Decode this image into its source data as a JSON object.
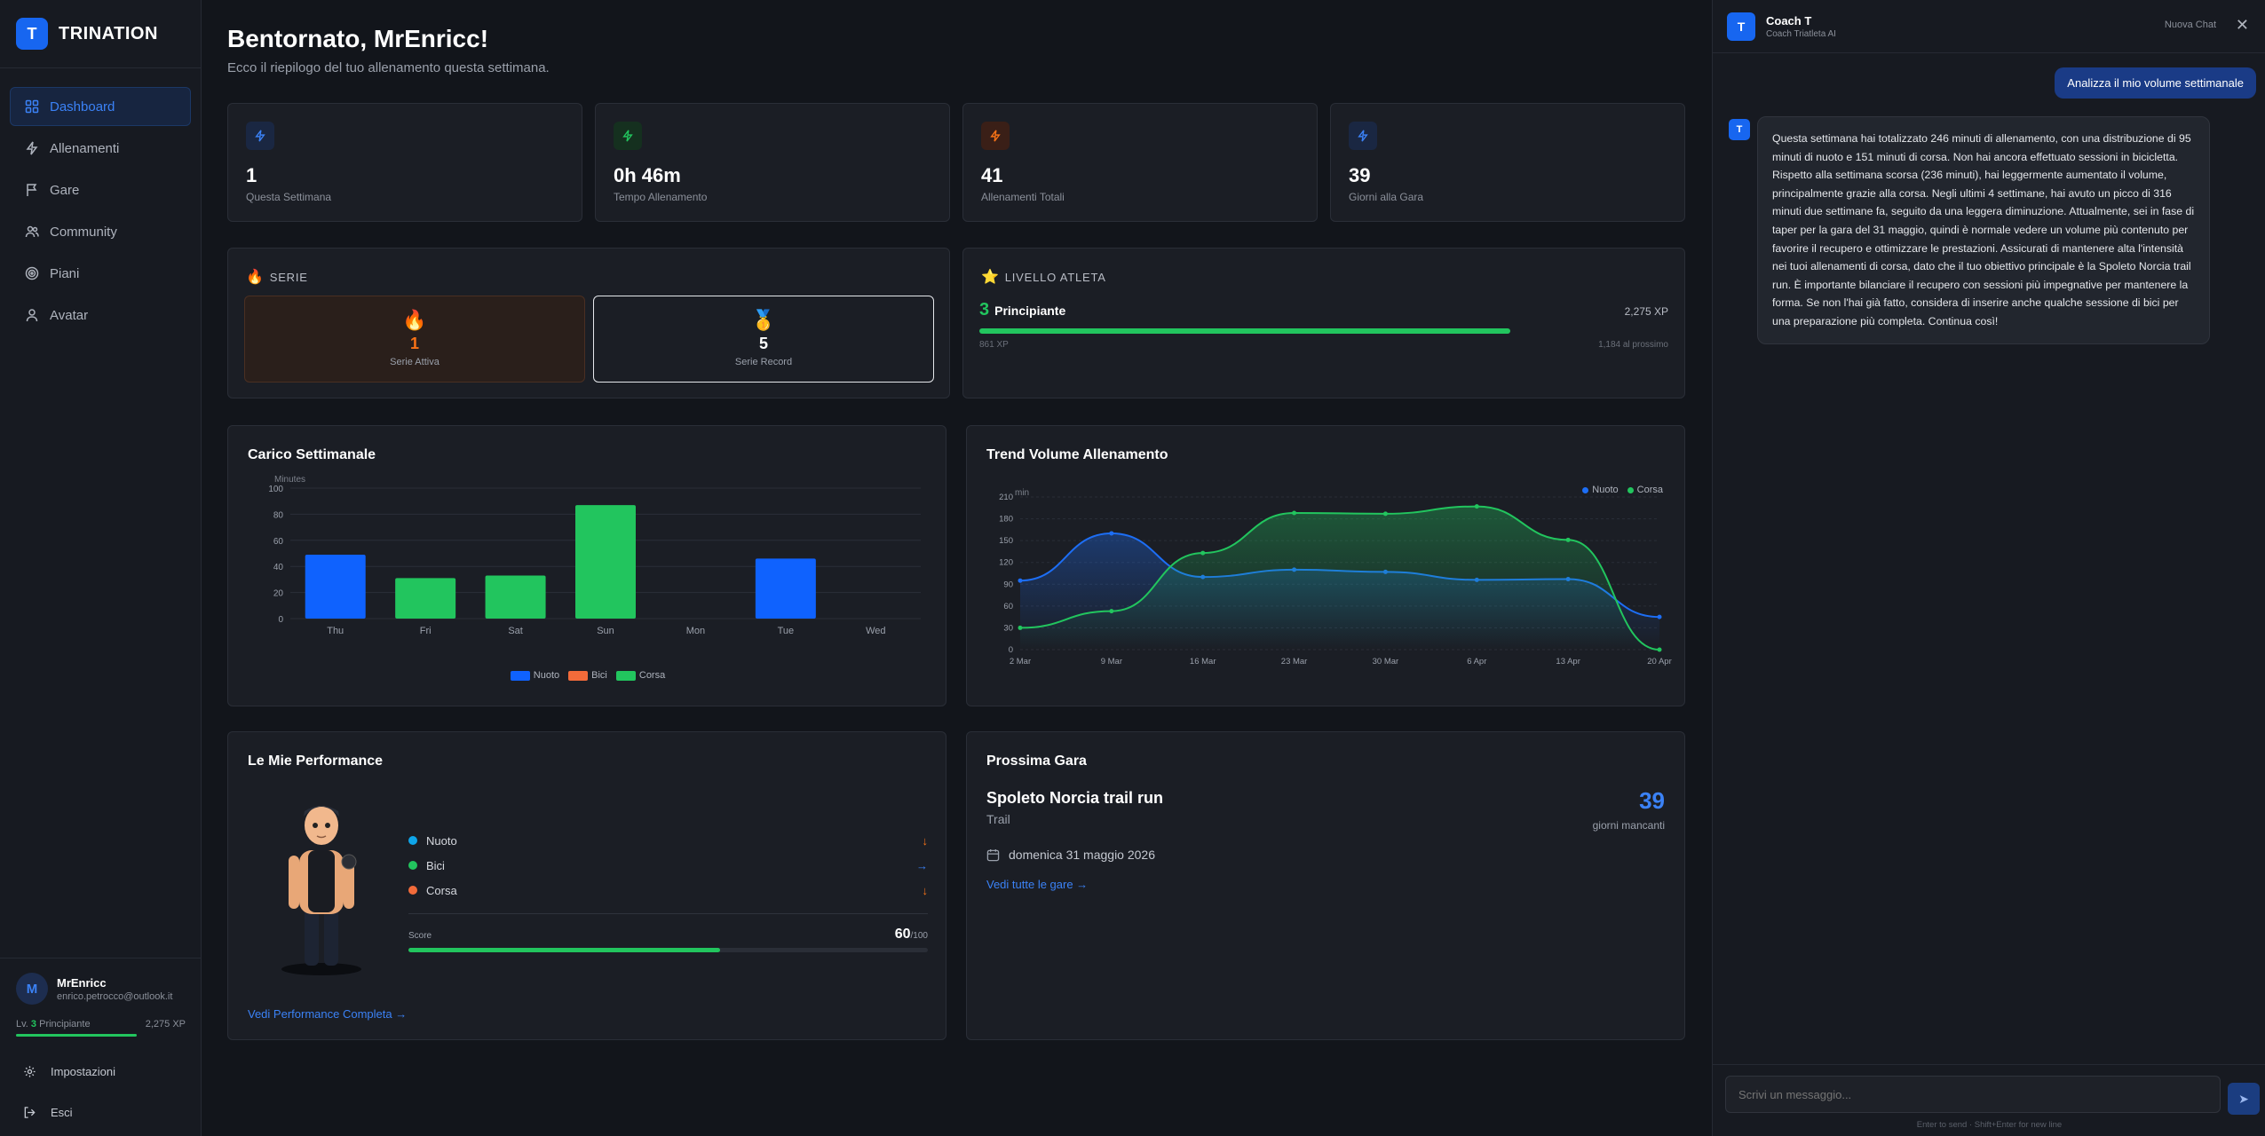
{
  "brand": {
    "logo": "T",
    "name": "TRINATION"
  },
  "nav": [
    {
      "label": "Dashboard",
      "icon": "grid-icon"
    },
    {
      "label": "Allenamenti",
      "icon": "bolt-icon"
    },
    {
      "label": "Gare",
      "icon": "flag-icon"
    },
    {
      "label": "Community",
      "icon": "users-icon"
    },
    {
      "label": "Piani",
      "icon": "target-icon"
    },
    {
      "label": "Avatar",
      "icon": "user-icon"
    }
  ],
  "user": {
    "initial": "M",
    "name": "MrEnricc",
    "email": "enrico.petrocco@outlook.it",
    "level_prefix": "Lv.",
    "level_num": "3",
    "level_name": "Principiante",
    "xp": "2,275 XP"
  },
  "side_links": {
    "settings": "Impostazioni",
    "logout": "Esci"
  },
  "header": {
    "title": "Bentornato, MrEnricc!",
    "subtitle": "Ecco il riepilogo del tuo allenamento questa settimana."
  },
  "stats": [
    {
      "value": "1",
      "label": "Questa Settimana",
      "color": "#3b82f6"
    },
    {
      "value": "0h 46m",
      "label": "Tempo Allenamento",
      "color": "#22c55e"
    },
    {
      "value": "41",
      "label": "Allenamenti Totali",
      "color": "#f97316"
    },
    {
      "value": "39",
      "label": "Giorni alla Gara",
      "color": "#3b82f6"
    }
  ],
  "serie": {
    "title": "SERIE",
    "active_value": "1",
    "active_label": "Serie Attiva",
    "record_value": "5",
    "record_label": "Serie Record"
  },
  "level": {
    "title": "LIVELLO ATLETA",
    "num": "3",
    "name": "Principiante",
    "xp": "2,275 XP",
    "current": "861 XP",
    "next": "1,184 al prossimo",
    "progress": 0.77
  },
  "weekly": {
    "title": "Carico Settimanale",
    "unit": "Minutes",
    "legend": [
      "Nuoto",
      "Bici",
      "Corsa"
    ]
  },
  "trend": {
    "title": "Trend Volume Allenamento",
    "unit": "min",
    "legend": [
      "Nuoto",
      "Corsa"
    ]
  },
  "chart_data": [
    {
      "type": "bar",
      "title": "Carico Settimanale",
      "ylabel": "Minutes",
      "ylim": [
        0,
        100
      ],
      "yticks": [
        0,
        20,
        40,
        60,
        80,
        100
      ],
      "categories": [
        "Thu",
        "Fri",
        "Sat",
        "Sun",
        "Mon",
        "Tue",
        "Wed"
      ],
      "series": [
        {
          "name": "Nuoto",
          "color": "#0f62fe",
          "values": [
            49,
            0,
            0,
            0,
            0,
            46,
            0
          ]
        },
        {
          "name": "Bici",
          "color": "#f26b3a",
          "values": [
            0,
            0,
            0,
            0,
            0,
            0,
            0
          ]
        },
        {
          "name": "Corsa",
          "color": "#22c55e",
          "values": [
            0,
            31,
            33,
            87,
            0,
            0,
            0
          ]
        }
      ],
      "legend": "bottom"
    },
    {
      "type": "area",
      "title": "Trend Volume Allenamento",
      "ylabel": "min",
      "ylim": [
        0,
        210
      ],
      "yticks": [
        0,
        30,
        60,
        90,
        120,
        150,
        180,
        210
      ],
      "x": [
        "2 Mar",
        "9 Mar",
        "16 Mar",
        "23 Mar",
        "30 Mar",
        "6 Apr",
        "13 Apr",
        "20 Apr"
      ],
      "series": [
        {
          "name": "Nuoto",
          "color": "#1d6ef5",
          "values": [
            95,
            160,
            100,
            110,
            107,
            96,
            97,
            45
          ]
        },
        {
          "name": "Corsa",
          "color": "#22c55e",
          "values": [
            30,
            53,
            133,
            188,
            187,
            197,
            151,
            0
          ]
        }
      ],
      "legend": "top-right"
    }
  ],
  "performance": {
    "title": "Le Mie Performance",
    "items": [
      {
        "label": "Nuoto",
        "color": "#0ea5e9",
        "arrow": "↓",
        "arrow_color": "#f97316"
      },
      {
        "label": "Bici",
        "color": "#22c55e",
        "arrow": "→",
        "arrow_color": "#3b82f6"
      },
      {
        "label": "Corsa",
        "color": "#f26b3a",
        "arrow": "↓",
        "arrow_color": "#f97316"
      }
    ],
    "score_label": "Score",
    "score": "60",
    "score_max": "/100",
    "score_value": 60,
    "link": "Vedi Performance Completa →"
  },
  "race": {
    "title": "Prossima Gara",
    "name": "Spoleto Norcia trail run",
    "type": "Trail",
    "days": "39",
    "days_label": "giorni mancanti",
    "date": "domenica 31 maggio 2026",
    "link": "Vedi tutte le gare →"
  },
  "chat": {
    "logo": "T",
    "name": "Coach T",
    "subtitle": "Coach Triatleta AI",
    "new_chat": "Nuova Chat",
    "user_msg": "Analizza il mio volume settimanale",
    "bot_msg": "Questa settimana hai totalizzato 246 minuti di allenamento, con una distribuzione di 95 minuti di nuoto e 151 minuti di corsa. Non hai ancora effettuato sessioni in bicicletta. Rispetto alla settimana scorsa (236 minuti), hai leggermente aumentato il volume, principalmente grazie alla corsa. Negli ultimi 4 settimane, hai avuto un picco di 316 minuti due settimane fa, seguito da una leggera diminuzione. Attualmente, sei in fase di taper per la gara del 31 maggio, quindi è normale vedere un volume più contenuto per favorire il recupero e ottimizzare le prestazioni. Assicurati di mantenere alta l'intensità nei tuoi allenamenti di corsa, dato che il tuo obiettivo principale è la Spoleto Norcia trail run. È importante bilanciare il recupero con sessioni più impegnative per mantenere la forma. Se non l'hai già fatto, considera di inserire anche qualche sessione di bici per una preparazione più completa. Continua così!",
    "placeholder": "Scrivi un messaggio...",
    "hint": "Enter to send · Shift+Enter for new line"
  }
}
